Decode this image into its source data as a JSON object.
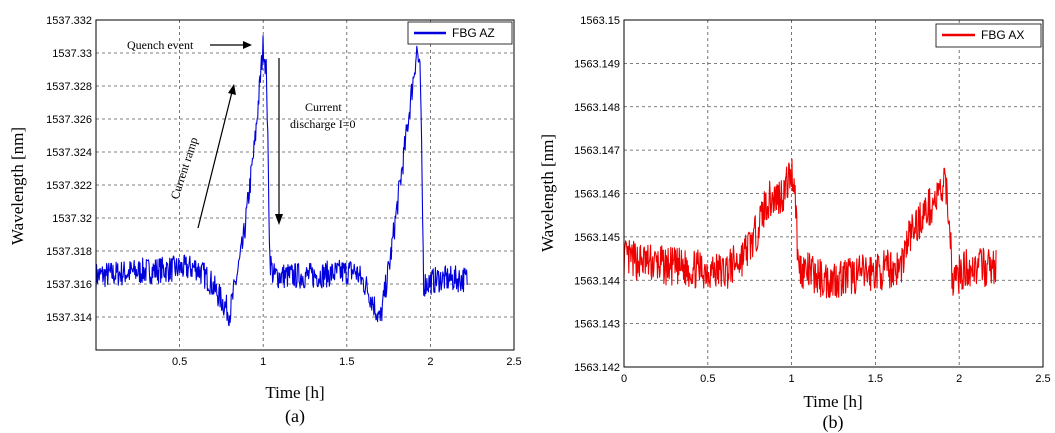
{
  "chart_data": [
    {
      "type": "line",
      "caption": "(a)",
      "xlabel": "Time [h]",
      "ylabel": "Wavelength [nm]",
      "xlim": [
        0,
        2.5
      ],
      "ylim": [
        1537.312,
        1537.332
      ],
      "xticks": [
        0.5,
        1,
        1.5,
        2,
        2.5
      ],
      "xtick_labels": [
        "0.5",
        "1",
        "1.5",
        "2",
        "2.5"
      ],
      "yticks": [
        1537.314,
        1537.316,
        1537.318,
        1537.32,
        1537.322,
        1537.324,
        1537.326,
        1537.328,
        1537.33,
        1537.332
      ],
      "ytick_labels": [
        "1537.314",
        "1537.316",
        "1537.318",
        "1537.32",
        "1537.322",
        "1537.324",
        "1537.326",
        "1537.328",
        "1537.33",
        "1537.332"
      ],
      "grid": true,
      "legend_position": "top-right",
      "color": "#0000dd",
      "series": [
        {
          "name": "FBG AZ",
          "noise": 0.0016,
          "points": [
            [
              0.0,
              1537.3165
            ],
            [
              0.3,
              1537.3168
            ],
            [
              0.6,
              1537.317
            ],
            [
              0.68,
              1537.3162
            ],
            [
              0.8,
              1537.3142
            ],
            [
              0.88,
              1537.3185
            ],
            [
              0.95,
              1537.3245
            ],
            [
              1.0,
              1537.3305
            ],
            [
              1.02,
              1537.3288
            ],
            [
              1.04,
              1537.3175
            ],
            [
              1.06,
              1537.3165
            ],
            [
              1.3,
              1537.3165
            ],
            [
              1.55,
              1537.3168
            ],
            [
              1.62,
              1537.3158
            ],
            [
              1.7,
              1537.3138
            ],
            [
              1.76,
              1537.3175
            ],
            [
              1.85,
              1537.3245
            ],
            [
              1.92,
              1537.3303
            ],
            [
              1.94,
              1537.3285
            ],
            [
              1.96,
              1537.316
            ],
            [
              2.05,
              1537.3163
            ],
            [
              2.22,
              1537.3163
            ]
          ]
        }
      ],
      "annotations": [
        {
          "text": "Quench event"
        },
        {
          "text": "Current ramp"
        },
        {
          "text": "Current"
        },
        {
          "text": "discharge I=0"
        }
      ]
    },
    {
      "type": "line",
      "caption": "(b)",
      "xlabel": "Time [h]",
      "ylabel": "Wavelength [nm]",
      "xlim": [
        0,
        2.5
      ],
      "ylim": [
        1563.142,
        1563.15
      ],
      "xticks": [
        0,
        0.5,
        1,
        1.5,
        2,
        2.5
      ],
      "xtick_labels": [
        "0",
        "0.5",
        "1",
        "1.5",
        "2",
        "2.5"
      ],
      "yticks": [
        1563.142,
        1563.143,
        1563.144,
        1563.145,
        1563.146,
        1563.147,
        1563.148,
        1563.149,
        1563.15
      ],
      "ytick_labels": [
        "1563.142",
        "1563.143",
        "1563.144",
        "1563.145",
        "1563.146",
        "1563.147",
        "1563.148",
        "1563.149",
        "1563.15"
      ],
      "grid": true,
      "legend_position": "top-right",
      "color": "#ee0000",
      "series": [
        {
          "name": "FBG AX",
          "noise": 0.0009,
          "points": [
            [
              0.0,
              1563.1445
            ],
            [
              0.3,
              1563.1443
            ],
            [
              0.6,
              1563.1442
            ],
            [
              0.7,
              1563.1445
            ],
            [
              0.78,
              1563.145
            ],
            [
              0.85,
              1563.1458
            ],
            [
              0.95,
              1563.146
            ],
            [
              1.0,
              1563.1465
            ],
            [
              1.02,
              1563.1462
            ],
            [
              1.04,
              1563.1443
            ],
            [
              1.2,
              1563.144
            ],
            [
              1.5,
              1563.1442
            ],
            [
              1.65,
              1563.1443
            ],
            [
              1.7,
              1563.145
            ],
            [
              1.78,
              1563.1455
            ],
            [
              1.85,
              1563.1458
            ],
            [
              1.92,
              1563.1462
            ],
            [
              1.94,
              1563.1455
            ],
            [
              1.96,
              1563.144
            ],
            [
              2.05,
              1563.1443
            ],
            [
              2.22,
              1563.1443
            ]
          ]
        }
      ]
    }
  ]
}
